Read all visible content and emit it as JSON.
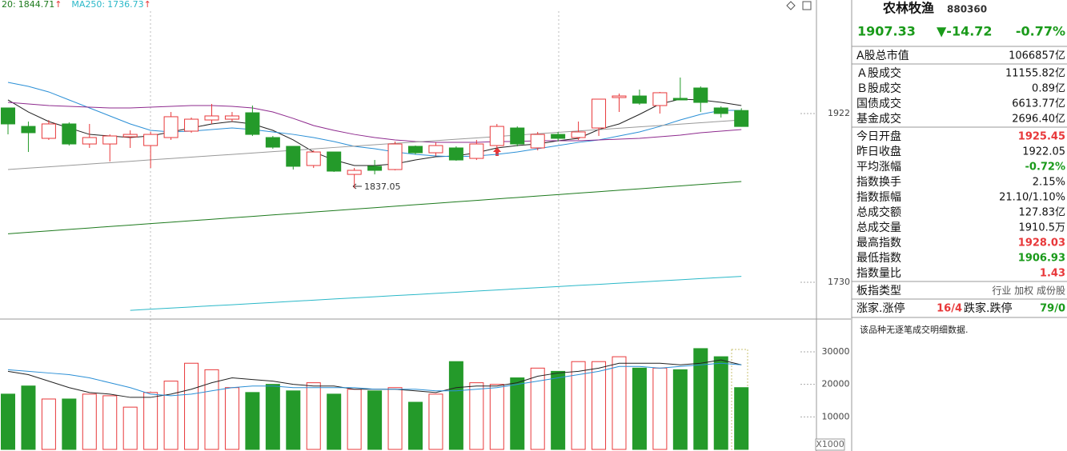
{
  "chart_data": {
    "type": "candlestick",
    "up_color": "#e8383a",
    "down_color": "#249a2a",
    "open": [
      1928.4,
      1907.4,
      1893.8,
      1910.2,
      1887.4,
      1887.4,
      1895.6,
      1885.6,
      1894.7,
      1902.0,
      1914.7,
      1915.6,
      1922.9,
      1894.7,
      1884.7,
      1862.9,
      1878.3,
      1852.8,
      1862.0,
      1858.3,
      1884.7,
      1877.4,
      1882.9,
      1871.0,
      1885.6,
      1905.6,
      1882.9,
      1898.3,
      1894.7,
      1905.6,
      1940.2,
      1942.0,
      1931.1,
      1939.3,
      1951.1,
      1928.4,
      1925.45
    ],
    "high": [
      1928.4,
      1912.9,
      1914.7,
      1912.0,
      1910.2,
      1898.3,
      1902.9,
      1901.1,
      1923.8,
      1917.5,
      1932.9,
      1923.8,
      1931.1,
      1896.5,
      1884.7,
      1880.1,
      1878.3,
      1860.1,
      1869.2,
      1890.2,
      1885.6,
      1889.2,
      1884.7,
      1892.0,
      1910.2,
      1907.4,
      1901.1,
      1901.1,
      1912.9,
      1938.4,
      1944.8,
      1949.3,
      1946.6,
      1963.0,
      1952.9,
      1930.2,
      1928.03
    ],
    "low": [
      1898.3,
      1878.3,
      1892.0,
      1885.6,
      1882.9,
      1867.4,
      1882.9,
      1860.1,
      1892.0,
      1900.2,
      1910.2,
      1912.9,
      1896.5,
      1882.0,
      1858.3,
      1860.1,
      1855.6,
      1837.05,
      1852.8,
      1857.4,
      1875.6,
      1873.8,
      1868.3,
      1869.2,
      1875.6,
      1884.7,
      1880.1,
      1890.2,
      1892.0,
      1896.5,
      1923.8,
      1932.0,
      1922.0,
      1937.5,
      1923.8,
      1917.5,
      1906.93
    ],
    "close": [
      1910.2,
      1900.2,
      1910.2,
      1887.4,
      1894.7,
      1896.5,
      1898.3,
      1898.3,
      1918.4,
      1915.6,
      1919.3,
      1919.3,
      1898.3,
      1883.8,
      1862.0,
      1878.3,
      1856.5,
      1857.4,
      1857.4,
      1887.4,
      1877.4,
      1885.6,
      1869.2,
      1887.4,
      1907.4,
      1887.4,
      1898.3,
      1893.8,
      1901.1,
      1938.4,
      1942.0,
      1933.8,
      1945.7,
      1937.5,
      1934.7,
      1922.05,
      1907.33
    ],
    "ylim": [
      1689.1,
      2051.2
    ],
    "yticks": [
      1922,
      1730
    ],
    "ma": [
      {
        "color": "#222222",
        "values": [
          1937.5,
          1923.8,
          1912.9,
          1905.6,
          1898.3,
          1896.5,
          1894.7,
          1896.5,
          1901.1,
          1905.6,
          1910.2,
          1912.9,
          1910.2,
          1902.9,
          1892.0,
          1878.3,
          1869.2,
          1862.9,
          1862.9,
          1864.7,
          1869.2,
          1872.9,
          1873.8,
          1877.4,
          1882.9,
          1885.6,
          1887.4,
          1891.1,
          1893.8,
          1903.8,
          1910.2,
          1921.1,
          1932.9,
          1938.4,
          1937.5,
          1934.7,
          1931.1
        ]
      },
      {
        "color": "#2a8fd6",
        "values": [
          1957.5,
          1952.9,
          1946.6,
          1937.5,
          1928.4,
          1919.3,
          1910.2,
          1902.9,
          1901.1,
          1902.0,
          1903.8,
          1905.6,
          1903.8,
          1901.1,
          1898.3,
          1894.7,
          1890.2,
          1884.7,
          1882.0,
          1878.3,
          1875.6,
          1873.8,
          1872.9,
          1873.8,
          1875.6,
          1878.3,
          1882.0,
          1885.6,
          1889.2,
          1892.0,
          1896.5,
          1901.1,
          1907.4,
          1914.7,
          1921.1,
          1925.6,
          1925.6
        ]
      },
      {
        "color": "#8e2a8e",
        "values": [
          1934.7,
          1932.9,
          1931.1,
          1930.2,
          1929.3,
          1928.4,
          1928.4,
          1929.3,
          1930.2,
          1931.1,
          1931.1,
          1930.2,
          1928.4,
          1923.8,
          1916.5,
          1908.4,
          1902.9,
          1898.3,
          1894.7,
          1892.0,
          1890.2,
          1889.2,
          1889.2,
          1889.2,
          1890.2,
          1890.2,
          1891.1,
          1891.1,
          1891.1,
          1892.0,
          1892.9,
          1893.8,
          1895.6,
          1897.4,
          1900.2,
          1902.0,
          1903.8
        ]
      },
      {
        "color": "#999999",
        "values": [
          1858.3,
          1859.9,
          1861.4,
          1863.0,
          1864.6,
          1866.1,
          1867.7,
          1869.3,
          1870.8,
          1872.4,
          1874.0,
          1875.5,
          1877.1,
          1878.7,
          1880.2,
          1881.8,
          1883.4,
          1884.9,
          1886.5,
          1888.1,
          1889.6,
          1891.2,
          1892.8,
          1894.3,
          1895.9,
          1897.5,
          1899.0,
          1900.6,
          1902.2,
          1903.7,
          1905.3,
          1906.9,
          1908.4,
          1910.0,
          1911.6,
          1913.1,
          1914.7
        ]
      },
      {
        "name": "20:",
        "color": "#1d7a1d",
        "values": [
          1785.2,
          1786.9,
          1788.5,
          1790.2,
          1791.8,
          1793.5,
          1795.1,
          1796.8,
          1798.4,
          1800.1,
          1801.7,
          1803.4,
          1805.0,
          1806.7,
          1808.3,
          1810.0,
          1811.6,
          1813.3,
          1814.9,
          1816.6,
          1818.3,
          1819.9,
          1821.6,
          1823.2,
          1824.9,
          1826.5,
          1828.2,
          1829.8,
          1831.5,
          1833.1,
          1834.8,
          1836.4,
          1838.1,
          1839.7,
          1841.4,
          1843.0,
          1844.71
        ]
      },
      {
        "name": "MA250:",
        "color": "#2ab8c8",
        "values": [
          null,
          null,
          null,
          null,
          null,
          null,
          1698.1,
          1699.4,
          1700.7,
          1702.0,
          1703.3,
          1704.5,
          1705.8,
          1707.1,
          1708.4,
          1709.7,
          1711.0,
          1712.3,
          1713.6,
          1714.9,
          1716.1,
          1717.4,
          1718.7,
          1720.0,
          1721.3,
          1722.6,
          1723.9,
          1725.2,
          1726.5,
          1727.7,
          1729.0,
          1730.3,
          1731.6,
          1732.9,
          1734.2,
          1735.5,
          1736.73
        ]
      }
    ],
    "legend_arrow": "↑",
    "volume": {
      "values": [
        17000,
        19500,
        15500,
        15500,
        17000,
        16500,
        13000,
        17500,
        21000,
        26500,
        24500,
        19000,
        17500,
        20000,
        18000,
        20500,
        17000,
        18500,
        18000,
        19000,
        14500,
        17000,
        27000,
        20500,
        20000,
        22000,
        25000,
        24000,
        27000,
        27000,
        28500,
        25000,
        25000,
        24500,
        31000,
        28500,
        19000
      ],
      "ylim": [
        0,
        39100
      ],
      "yticks": [
        30000,
        20000,
        10000
      ],
      "unit_label": "X1000",
      "ma": [
        {
          "color": "#222222",
          "values": [
            24000,
            23000,
            21000,
            19000,
            17500,
            17000,
            16000,
            16000,
            17000,
            18500,
            20500,
            22000,
            21500,
            21000,
            20000,
            19500,
            19500,
            18500,
            18500,
            18500,
            18000,
            17500,
            19000,
            19500,
            19500,
            20500,
            22500,
            23500,
            24000,
            25000,
            26500,
            26500,
            26500,
            26000,
            26500,
            27500,
            26000
          ]
        },
        {
          "color": "#2a8fd6",
          "values": [
            24500,
            24000,
            23500,
            23000,
            22000,
            20500,
            19000,
            17000,
            16500,
            17000,
            18000,
            19000,
            19500,
            19500,
            19000,
            19000,
            19000,
            19000,
            18500,
            18500,
            18500,
            18000,
            18000,
            18500,
            19000,
            20000,
            21000,
            22000,
            23000,
            24000,
            25500,
            25500,
            25000,
            25500,
            26000,
            26500,
            26000
          ]
        }
      ]
    }
  },
  "panel": {
    "name": "农林牧渔",
    "code": "880360",
    "price": "1907.33",
    "change": "▼-14.72",
    "change_pct": "-0.77%",
    "quote_color": "#1a9a1a",
    "groups": [
      [
        {
          "label": "A股总市值",
          "value": "1066857亿"
        }
      ],
      [
        {
          "label": "Ａ股成交",
          "value": "11155.82亿"
        },
        {
          "label": "Ｂ股成交",
          "value": "0.89亿"
        },
        {
          "label": "国债成交",
          "value": "6613.77亿"
        },
        {
          "label": "基金成交",
          "value": "2696.40亿"
        }
      ],
      [
        {
          "label": "今日开盘",
          "value": "1925.45",
          "color": "#e8383a"
        },
        {
          "label": "昨日收盘",
          "value": "1922.05"
        },
        {
          "label": "平均涨幅",
          "value": "-0.72%",
          "color": "#1a9a1a"
        },
        {
          "label": "指数换手",
          "value": "2.15%"
        },
        {
          "label": "指数振幅",
          "value": "21.10/1.10%"
        },
        {
          "label": "总成交额",
          "value": "127.83亿"
        },
        {
          "label": "总成交量",
          "value": "1910.5万"
        },
        {
          "label": "最高指数",
          "value": "1928.03",
          "color": "#e8383a"
        },
        {
          "label": "最低指数",
          "value": "1906.93",
          "color": "#1a9a1a"
        },
        {
          "label": "指数量比",
          "value": "1.43",
          "color": "#e8383a"
        }
      ],
      [
        {
          "label": "板指类型",
          "value": "行业 加权 成份股"
        }
      ]
    ],
    "breadth": {
      "up_label": "涨家.涨停",
      "up_value": "16/4",
      "down_label": "跌家.跌停",
      "down_value": "79/0"
    },
    "note": "该品种无逐笔成交明细数据."
  }
}
